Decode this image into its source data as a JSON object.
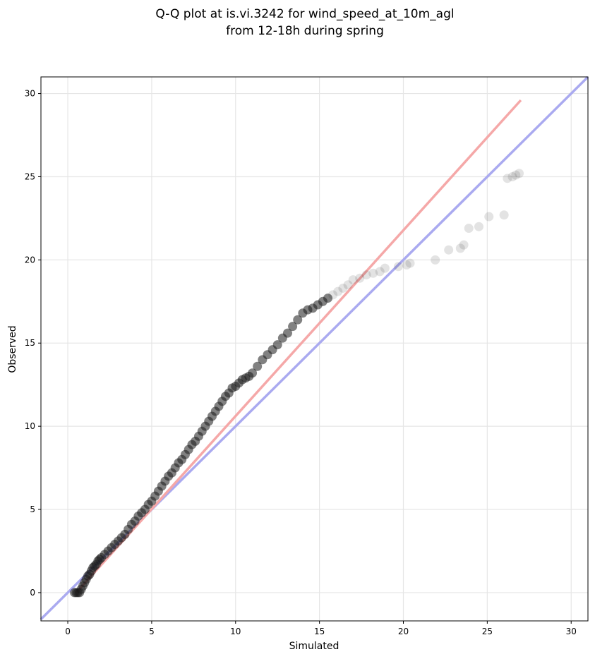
{
  "chart_data": {
    "type": "scatter",
    "title_lines": [
      "Q-Q plot at is.vi.3242 for wind_speed_at_10m_agl",
      "from 12-18h during spring"
    ],
    "xlabel": "Simulated",
    "ylabel": "Observed",
    "xlim": [
      -1.6,
      31.0
    ],
    "ylim": [
      -1.7,
      31.0
    ],
    "xticks": [
      0,
      5,
      10,
      15,
      20,
      25,
      30
    ],
    "yticks": [
      0,
      5,
      10,
      15,
      20,
      25,
      30
    ],
    "grid": true,
    "colors": {
      "points": "#1a1a1a",
      "identity_line": "#aaaaf0",
      "fit_line": "#f5a8a8"
    },
    "identity_line": {
      "x": [
        -1.6,
        31.0
      ],
      "y": [
        -1.6,
        31.0
      ]
    },
    "fit_line": {
      "x": [
        0.5,
        27.0
      ],
      "y": [
        0.0,
        29.6
      ]
    },
    "points": {
      "x": [
        0.4,
        0.5,
        0.6,
        0.7,
        0.8,
        0.9,
        1.0,
        1.1,
        1.2,
        1.3,
        1.4,
        1.5,
        1.6,
        1.7,
        1.8,
        1.9,
        2.0,
        2.2,
        2.4,
        2.6,
        2.8,
        3.0,
        3.2,
        3.4,
        3.6,
        3.8,
        4.0,
        4.2,
        4.4,
        4.6,
        4.8,
        5.0,
        5.2,
        5.4,
        5.6,
        5.8,
        6.0,
        6.2,
        6.4,
        6.6,
        6.8,
        7.0,
        7.2,
        7.4,
        7.6,
        7.8,
        8.0,
        8.2,
        8.4,
        8.6,
        8.8,
        9.0,
        9.2,
        9.4,
        9.6,
        9.8,
        10.0,
        10.2,
        10.4,
        10.6,
        10.8,
        11.0,
        11.3,
        11.6,
        11.9,
        12.2,
        12.5,
        12.8,
        13.1,
        13.4,
        13.7,
        14.0,
        14.3,
        14.6,
        14.9,
        15.2,
        15.5,
        15.8,
        16.1,
        16.4,
        16.7,
        17.0,
        17.4,
        17.8,
        18.2,
        18.6,
        18.9,
        19.7,
        20.2,
        20.4,
        21.9,
        22.7,
        23.4,
        23.6,
        23.9,
        24.5,
        25.1,
        26.0,
        26.2,
        26.5,
        26.7,
        26.9
      ],
      "y": [
        0.0,
        0.0,
        0.0,
        0.0,
        0.2,
        0.4,
        0.6,
        0.8,
        1.0,
        1.1,
        1.3,
        1.5,
        1.6,
        1.7,
        1.9,
        2.0,
        2.1,
        2.3,
        2.5,
        2.7,
        2.9,
        3.1,
        3.3,
        3.5,
        3.8,
        4.1,
        4.3,
        4.6,
        4.8,
        5.0,
        5.3,
        5.5,
        5.8,
        6.1,
        6.4,
        6.7,
        7.0,
        7.2,
        7.5,
        7.8,
        8.0,
        8.3,
        8.6,
        8.9,
        9.1,
        9.4,
        9.7,
        10.0,
        10.3,
        10.6,
        10.9,
        11.2,
        11.5,
        11.8,
        12.0,
        12.3,
        12.4,
        12.6,
        12.8,
        12.9,
        13.0,
        13.2,
        13.6,
        14.0,
        14.3,
        14.6,
        14.9,
        15.3,
        15.6,
        16.0,
        16.4,
        16.8,
        17.0,
        17.1,
        17.3,
        17.5,
        17.7,
        17.9,
        18.1,
        18.3,
        18.5,
        18.8,
        18.9,
        19.1,
        19.2,
        19.3,
        19.5,
        19.6,
        19.7,
        19.8,
        20.0,
        20.6,
        20.7,
        20.9,
        21.9,
        22.0,
        22.6,
        22.7,
        24.9,
        25.0,
        25.1,
        25.2
      ]
    }
  }
}
